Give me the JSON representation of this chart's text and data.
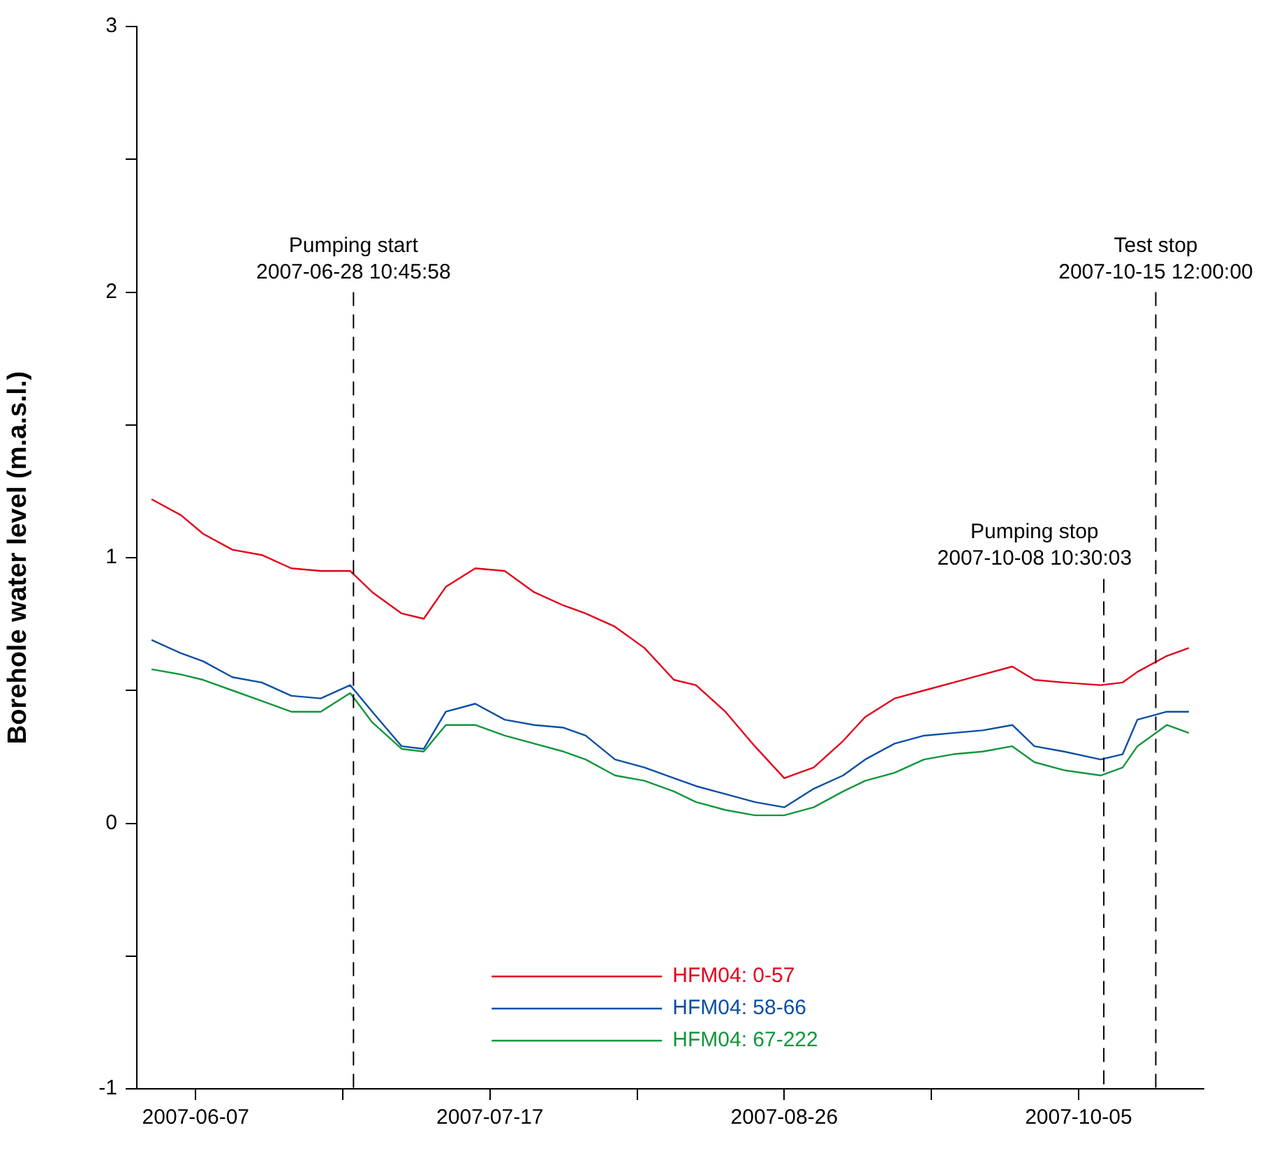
{
  "chart_data": {
    "type": "line",
    "ylabel": "Borehole water level (m.a.s.l.)",
    "x": [
      "2007-06-01",
      "2007-06-05",
      "2007-06-08",
      "2007-06-12",
      "2007-06-16",
      "2007-06-20",
      "2007-06-24",
      "2007-06-28",
      "2007-07-01",
      "2007-07-05",
      "2007-07-08",
      "2007-07-11",
      "2007-07-15",
      "2007-07-19",
      "2007-07-23",
      "2007-07-27",
      "2007-07-30",
      "2007-08-03",
      "2007-08-07",
      "2007-08-11",
      "2007-08-14",
      "2007-08-18",
      "2007-08-22",
      "2007-08-26",
      "2007-08-30",
      "2007-09-03",
      "2007-09-06",
      "2007-09-10",
      "2007-09-14",
      "2007-09-18",
      "2007-09-22",
      "2007-09-26",
      "2007-09-29",
      "2007-10-03",
      "2007-10-08",
      "2007-10-11",
      "2007-10-13",
      "2007-10-17",
      "2007-10-20"
    ],
    "series": [
      {
        "name": "HFM04: 0-57",
        "color": "#e3001b",
        "values": [
          1.22,
          1.16,
          1.09,
          1.03,
          1.01,
          0.96,
          0.95,
          0.95,
          0.87,
          0.79,
          0.77,
          0.89,
          0.96,
          0.95,
          0.87,
          0.82,
          0.79,
          0.74,
          0.66,
          0.54,
          0.52,
          0.42,
          0.29,
          0.17,
          0.21,
          0.31,
          0.4,
          0.47,
          0.5,
          0.53,
          0.56,
          0.59,
          0.54,
          0.53,
          0.52,
          0.53,
          0.57,
          0.63,
          0.66
        ]
      },
      {
        "name": "HFM04: 58-66",
        "color": "#0a4fa3",
        "values": [
          0.69,
          0.64,
          0.61,
          0.55,
          0.53,
          0.48,
          0.47,
          0.52,
          0.42,
          0.29,
          0.28,
          0.42,
          0.45,
          0.39,
          0.37,
          0.36,
          0.33,
          0.24,
          0.21,
          0.17,
          0.14,
          0.11,
          0.08,
          0.06,
          0.13,
          0.18,
          0.24,
          0.3,
          0.33,
          0.34,
          0.35,
          0.37,
          0.29,
          0.27,
          0.24,
          0.26,
          0.39,
          0.42,
          0.42
        ]
      },
      {
        "name": "HFM04: 67-222",
        "color": "#12963c",
        "values": [
          0.58,
          0.56,
          0.54,
          0.5,
          0.46,
          0.42,
          0.42,
          0.49,
          0.38,
          0.28,
          0.27,
          0.37,
          0.37,
          0.33,
          0.3,
          0.27,
          0.24,
          0.18,
          0.16,
          0.12,
          0.08,
          0.05,
          0.03,
          0.03,
          0.06,
          0.12,
          0.16,
          0.19,
          0.24,
          0.26,
          0.27,
          0.29,
          0.23,
          0.2,
          0.18,
          0.21,
          0.29,
          0.37,
          0.34
        ]
      }
    ],
    "xlim": [
      "2007-05-30",
      "2007-10-22"
    ],
    "xticks": [
      "2007-06-07",
      {
        "value": "2007-06-27",
        "label": null
      },
      "2007-07-17",
      {
        "value": "2007-08-06",
        "label": null
      },
      "2007-08-26",
      {
        "value": "2007-09-15",
        "label": null
      },
      "2007-10-05"
    ],
    "ylim": [
      -1,
      3
    ],
    "yticks": [
      -1,
      {
        "value": -0.5,
        "label": null
      },
      0,
      {
        "value": 0.5,
        "label": null
      },
      1,
      {
        "value": 1.5,
        "label": null
      },
      2,
      {
        "value": 2.5,
        "label": null
      },
      3
    ],
    "ref_lines": [
      {
        "axis": "x",
        "value": "2007-06-28T10:45",
        "label": "Pumping start\n2007-06-28 10:45:58",
        "color": "#000000",
        "line_style": "dashed"
      },
      {
        "axis": "x",
        "value": "2007-10-08T10:30",
        "label": "Pumping stop\n2007-10-08 10:30:03",
        "color": "#000000",
        "line_style": "dashed"
      },
      {
        "axis": "x",
        "value": "2007-10-15T12:00",
        "label": "Test stop\n2007-10-15 12:00:00",
        "color": "#000000",
        "line_style": "dashed"
      }
    ],
    "grid": false,
    "legend": "bottom",
    "marker": "none",
    "line_style": "solid"
  }
}
